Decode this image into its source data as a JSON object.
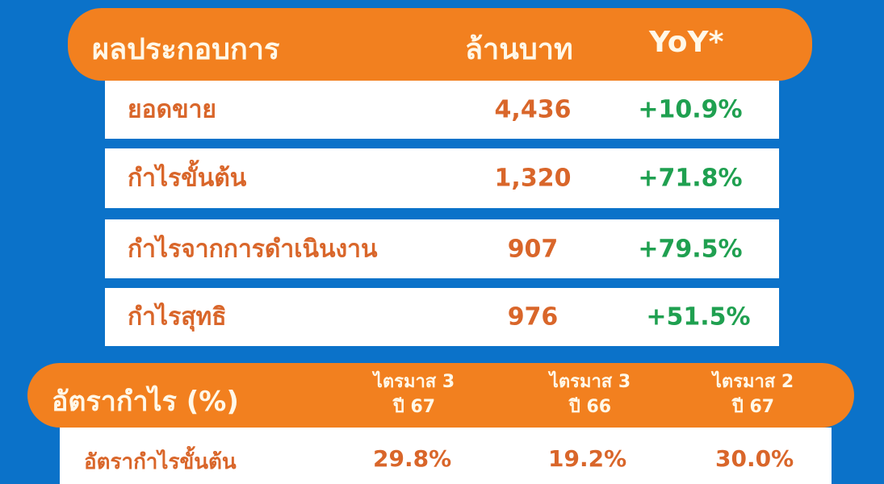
{
  "colors": {
    "background": "#0b72c9",
    "header": "#f2801f",
    "label_text": "#d9662a",
    "positive": "#1fa050"
  },
  "performance": {
    "headers": {
      "title": "ผลประกอบการ",
      "unit": "ล้านบาท",
      "yoy": "YoY*"
    },
    "rows": [
      {
        "label": "ยอดขาย",
        "value": "4,436",
        "yoy": "+10.9%"
      },
      {
        "label": "กำไรขั้นต้น",
        "value": "1,320",
        "yoy": "+71.8%"
      },
      {
        "label": "กำไรจากการดำเนินงาน",
        "value": "907",
        "yoy": "+79.5%"
      },
      {
        "label": "กำไรสุทธิ",
        "value": "976",
        "yoy": "+51.5%"
      }
    ]
  },
  "margins": {
    "headers": {
      "title": "อัตรากำไร (%)",
      "col1_line1": "ไตรมาส 3",
      "col1_line2": "ปี 67",
      "col2_line1": "ไตรมาส 3",
      "col2_line2": "ปี 66",
      "col3_line1": "ไตรมาส 2",
      "col3_line2": "ปี 67"
    },
    "rows": [
      {
        "label": "อัตรากำไรขั้นต้น",
        "q3_67": "29.8%",
        "q3_66": "19.2%",
        "q2_67": "30.0%"
      }
    ]
  }
}
